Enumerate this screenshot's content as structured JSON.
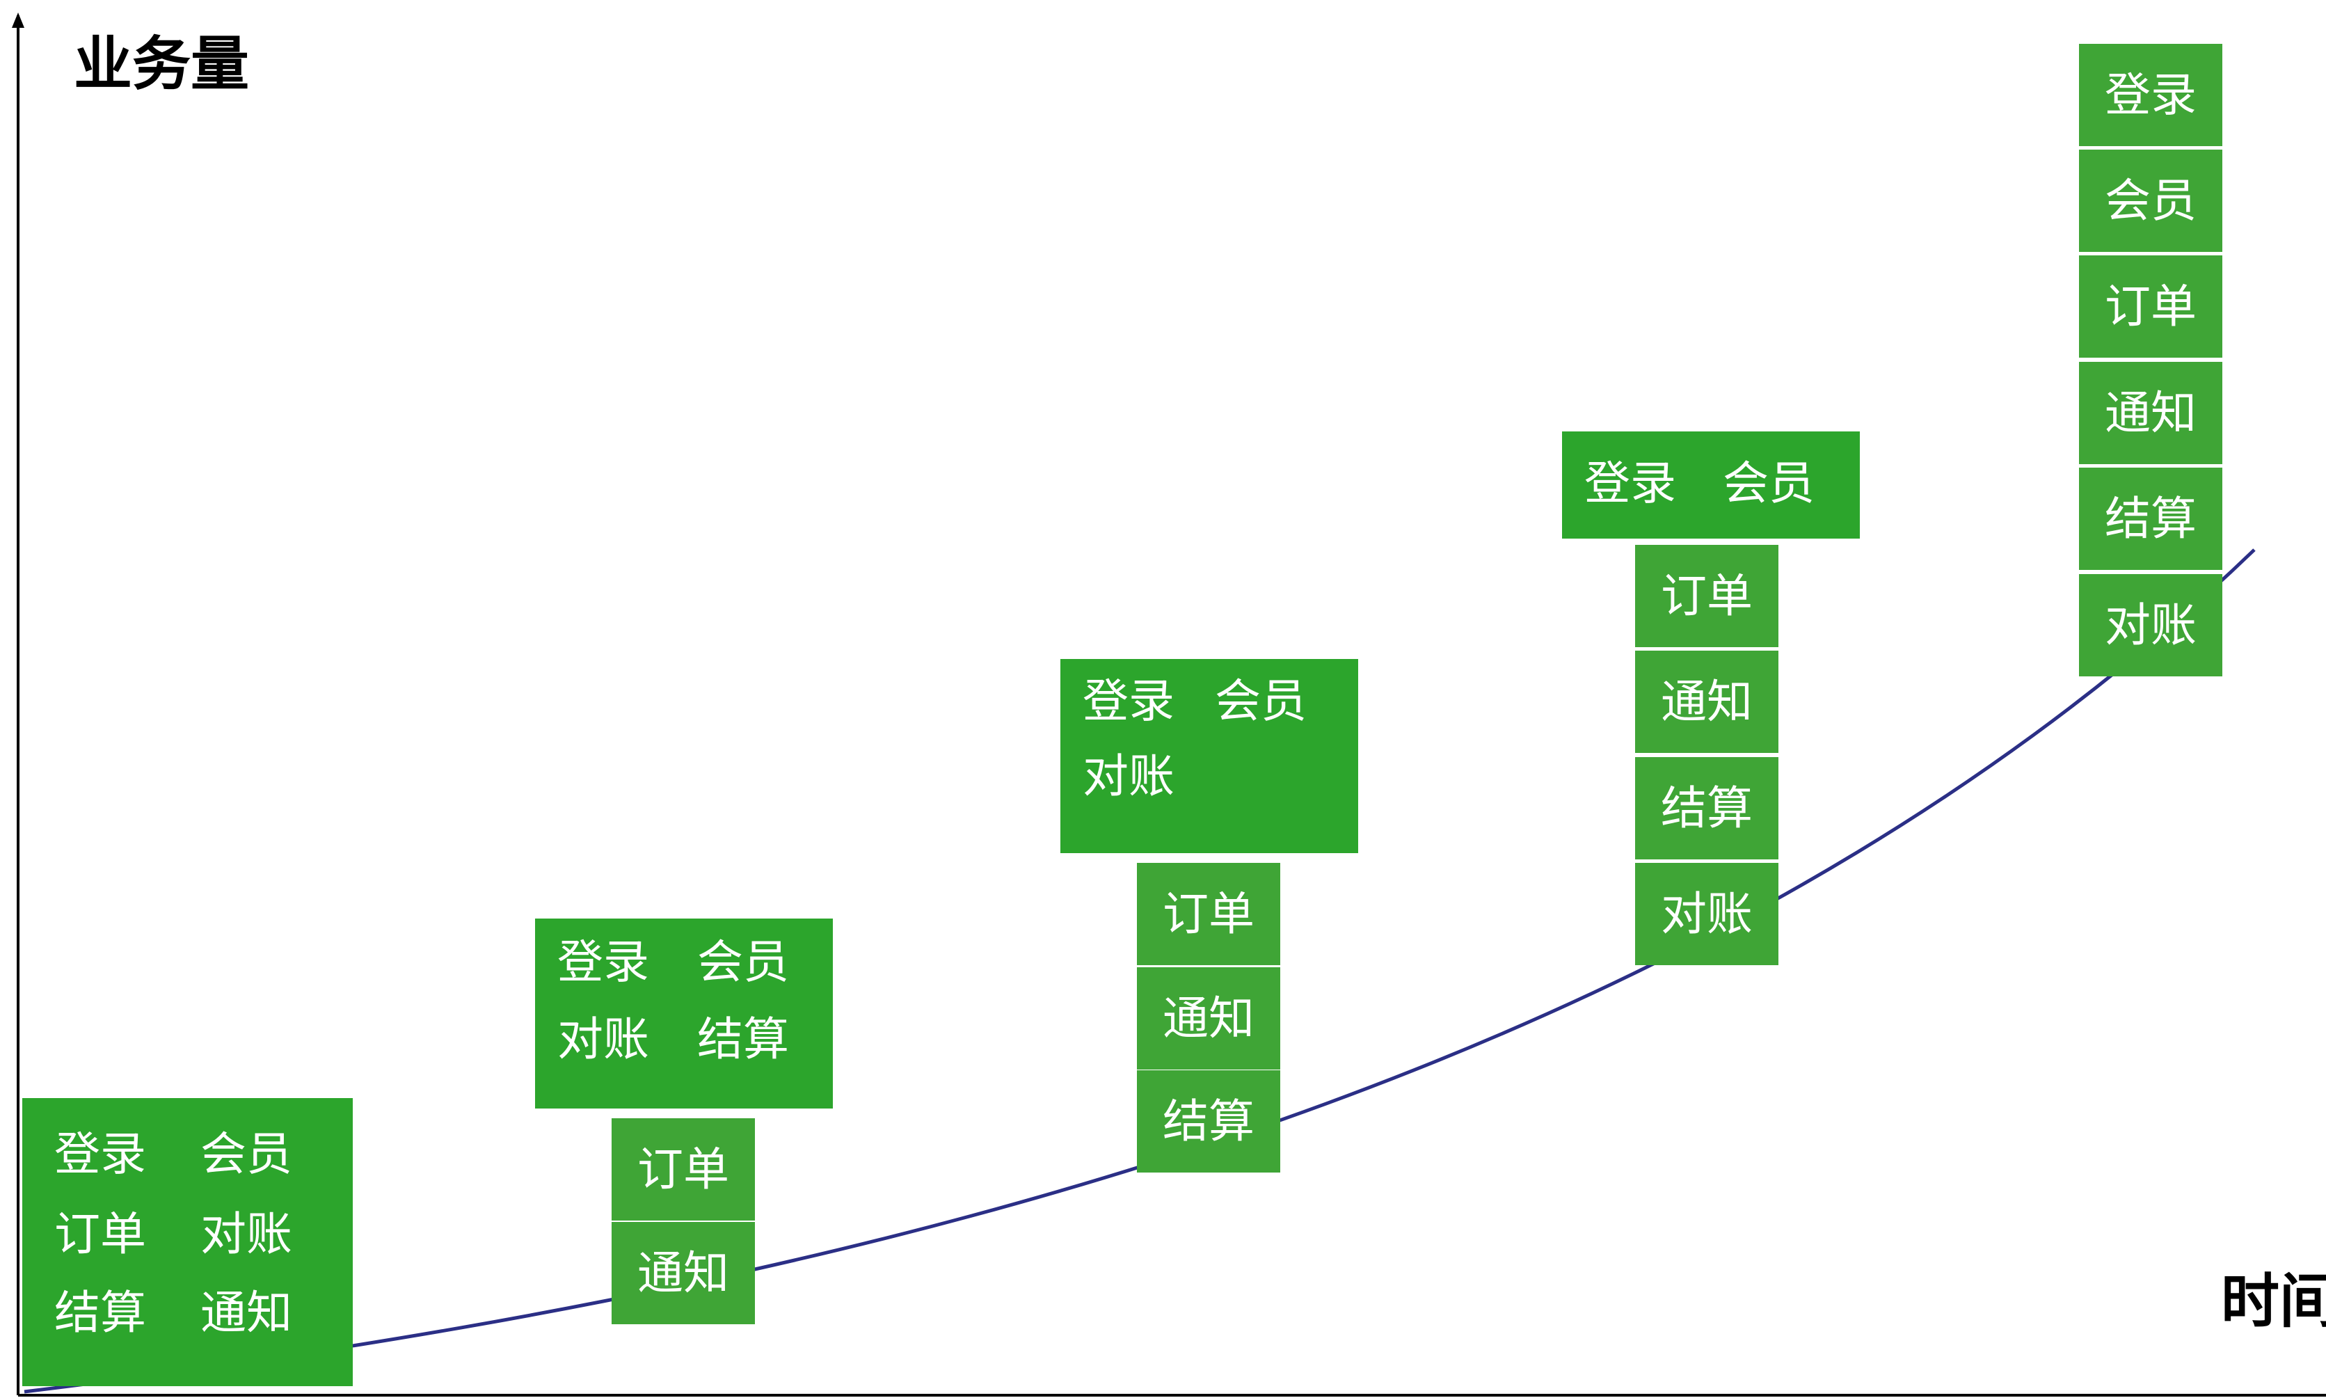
{
  "axes": {
    "y_label": "业务量",
    "x_label": "时间"
  },
  "colors": {
    "block_green": "#2ca52c",
    "tile_green": "#3fa536",
    "curve": "#2b2f86",
    "axis": "#000000",
    "text": "#ffffff"
  },
  "stages": [
    {
      "block": [
        "登录",
        "会员",
        "订单",
        "对账",
        "结算",
        "通知"
      ],
      "services": []
    },
    {
      "block": [
        "登录",
        "会员",
        "对账",
        "结算"
      ],
      "services": [
        "订单",
        "通知"
      ]
    },
    {
      "block": [
        "登录",
        "会员",
        "对账"
      ],
      "services": [
        "订单",
        "通知",
        "结算"
      ]
    },
    {
      "block": [
        "登录",
        "会员"
      ],
      "services": [
        "订单",
        "通知",
        "结算",
        "对账"
      ]
    },
    {
      "block": [],
      "services": [
        "登录",
        "会员",
        "订单",
        "通知",
        "结算",
        "对账"
      ]
    }
  ]
}
